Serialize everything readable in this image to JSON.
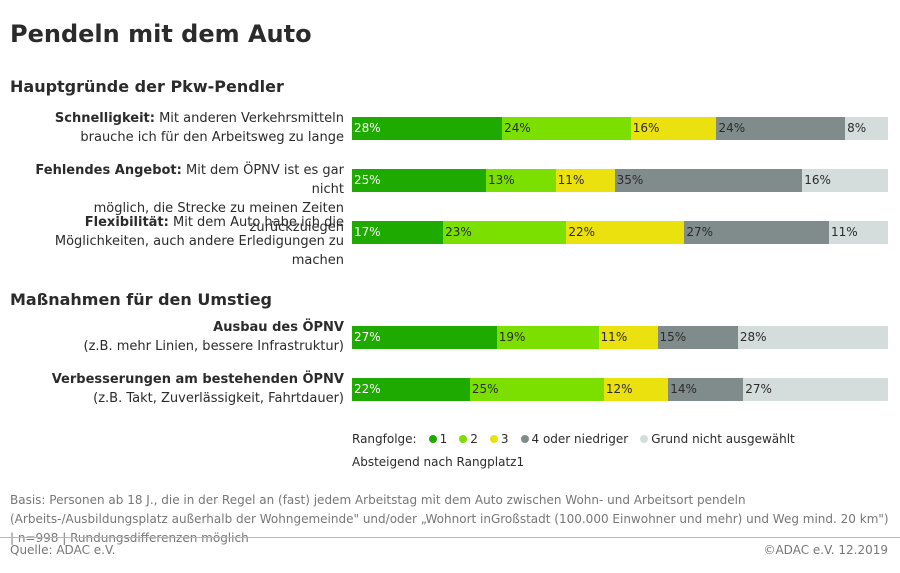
{
  "title": "Pendeln mit dem Auto",
  "colors": {
    "r1": "#1faa00",
    "r2": "#7be000",
    "r3": "#ebe10f",
    "r4": "#808c8c",
    "none": "#d4dcdc"
  },
  "chart_data": {
    "type": "bar",
    "stacked": true,
    "orientation": "horizontal",
    "groups": [
      {
        "heading": "Hauptgründe der Pkw-Pendler",
        "rows": [
          {
            "label_bold": "Schnelligkeit:",
            "label_rest": "Mit anderen Verkehrsmitteln",
            "label_line2": "brauche ich für den Arbeitsweg zu lange",
            "values": [
              28,
              24,
              16,
              24,
              8
            ]
          },
          {
            "label_bold": "Fehlendes Angebot:",
            "label_rest": "Mit dem ÖPNV ist es gar nicht",
            "label_line2": "möglich, die Strecke zu meinen Zeiten zurückzulegen",
            "values": [
              25,
              13,
              11,
              35,
              16
            ]
          },
          {
            "label_bold": "Flexibilität:",
            "label_rest": "Mit dem Auto habe ich die",
            "label_line2": "Möglichkeiten, auch andere Erledigungen zu machen",
            "values": [
              17,
              23,
              22,
              27,
              11
            ]
          }
        ]
      },
      {
        "heading": "Maßnahmen für den Umstieg",
        "rows": [
          {
            "label_bold": "Ausbau des ÖPNV",
            "label_rest": "",
            "label_line2": "(z.B. mehr Linien, bessere Infrastruktur)",
            "values": [
              27,
              19,
              11,
              15,
              28
            ]
          },
          {
            "label_bold": "Verbesserungen am bestehenden ÖPNV",
            "label_rest": "",
            "label_line2": "(z.B. Takt, Zuverlässigkeit, Fahrtdauer)",
            "values": [
              22,
              25,
              12,
              14,
              27
            ]
          }
        ]
      }
    ],
    "series": [
      {
        "name": "1",
        "color": "#1faa00"
      },
      {
        "name": "2",
        "color": "#7be000"
      },
      {
        "name": "3",
        "color": "#ebe10f"
      },
      {
        "name": "4 oder niedriger",
        "color": "#808c8c"
      },
      {
        "name": "Grund nicht ausgewählt",
        "color": "#d4dcdc"
      }
    ],
    "legend_title": "Rangfolge:",
    "sort_note": "Absteigend nach Rangplatz1",
    "value_suffix": "%"
  },
  "basis": "Basis: Personen ab 18 J., die in der Regel an (fast) jedem Arbeitstag mit dem Auto zwischen Wohn- und Arbeitsort pendeln (Arbeits-/Ausbildungsplatz außerhalb der Wohngemeinde\" und/oder „Wohnort inGroßstadt (100.000 Einwohner und mehr) und Weg mind. 20 km\") | n=998 | Rundungsdifferenzen möglich",
  "footer": {
    "source": "Quelle: ADAC e.V.",
    "copyright": "©ADAC e.V.  12.2019"
  }
}
